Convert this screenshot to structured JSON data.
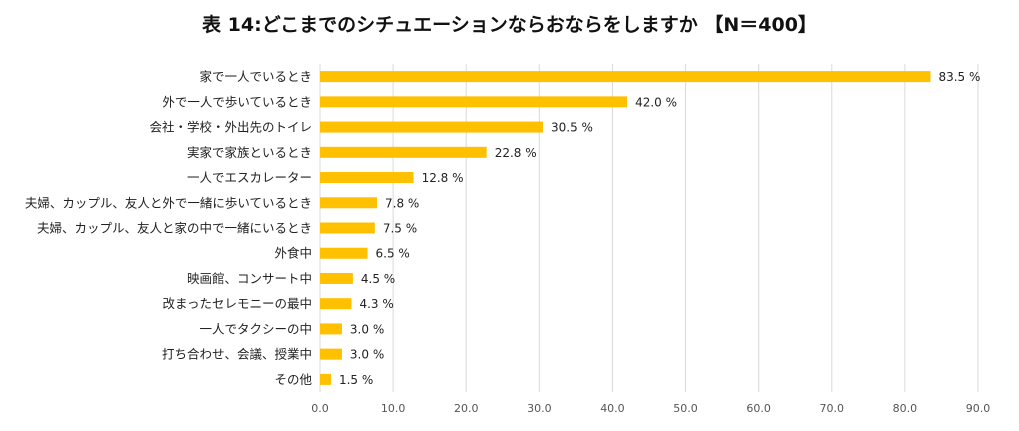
{
  "chart_data": {
    "type": "bar",
    "orientation": "horizontal",
    "title": "表 14:どこまでのシチュエーションならおならをしますか 【N＝400】",
    "xlim": [
      0,
      90
    ],
    "x_ticks": [
      "0.0",
      "10.0",
      "20.0",
      "30.0",
      "40.0",
      "50.0",
      "60.0",
      "70.0",
      "80.0",
      "90.0"
    ],
    "grid": "vertical",
    "bar_color": "#FFC000",
    "categories": [
      "家で一人でいるとき",
      "外で一人で歩いているとき",
      "会社・学校・外出先のトイレ",
      "実家で家族といるとき",
      "一人でエスカレーター",
      "夫婦、カップル、友人と外で一緒に歩いているとき",
      "夫婦、カップル、友人と家の中で一緒にいるとき",
      "外食中",
      "映画館、コンサート中",
      "改まったセレモニーの最中",
      "一人でタクシーの中",
      "打ち合わせ、会議、授業中",
      "その他"
    ],
    "values": [
      83.5,
      42.0,
      30.5,
      22.8,
      12.8,
      7.8,
      7.5,
      6.5,
      4.5,
      4.3,
      3.0,
      3.0,
      1.5
    ],
    "value_labels": [
      "83.5 %",
      "42.0 %",
      "30.5 %",
      "22.8 %",
      "12.8 %",
      "7.8 %",
      "7.5 %",
      "6.5 %",
      "4.5 %",
      "4.3 %",
      "3.0 %",
      "3.0 %",
      "1.5 %"
    ]
  }
}
